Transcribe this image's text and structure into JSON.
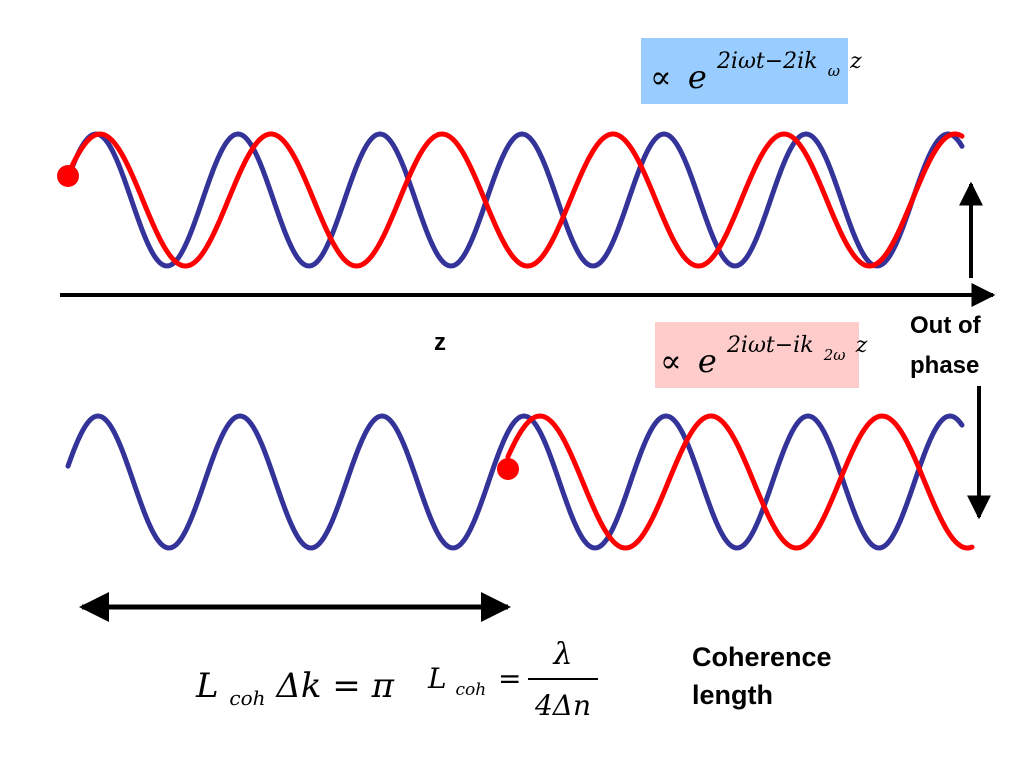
{
  "formulas": {
    "top": {
      "symbol": "∝",
      "base": "e",
      "exp_main": "2iωt−2ik",
      "exp_sub": "ω",
      "exp_tail": "z",
      "bg": "#99ccff"
    },
    "bottom": {
      "symbol": "∝",
      "base": "e",
      "exp_main": "2iωt−ik",
      "exp_sub": "2ω",
      "exp_tail": "z",
      "bg": "#ffcccc"
    },
    "coh_product": {
      "L": "L",
      "L_sub": "coh",
      "rest": "Δk = π"
    },
    "coh_length": {
      "L": "L",
      "L_sub": "coh",
      "eq": "=",
      "numerator": "λ",
      "denominator": "4Δn"
    }
  },
  "labels": {
    "axis": "z",
    "out_of_phase": [
      "Out of",
      "phase"
    ],
    "coherence": [
      "Coherence",
      "length"
    ]
  },
  "colors": {
    "fundamental_wave": "#333399",
    "harmonic_wave": "#ff0000",
    "axis": "#000000"
  }
}
